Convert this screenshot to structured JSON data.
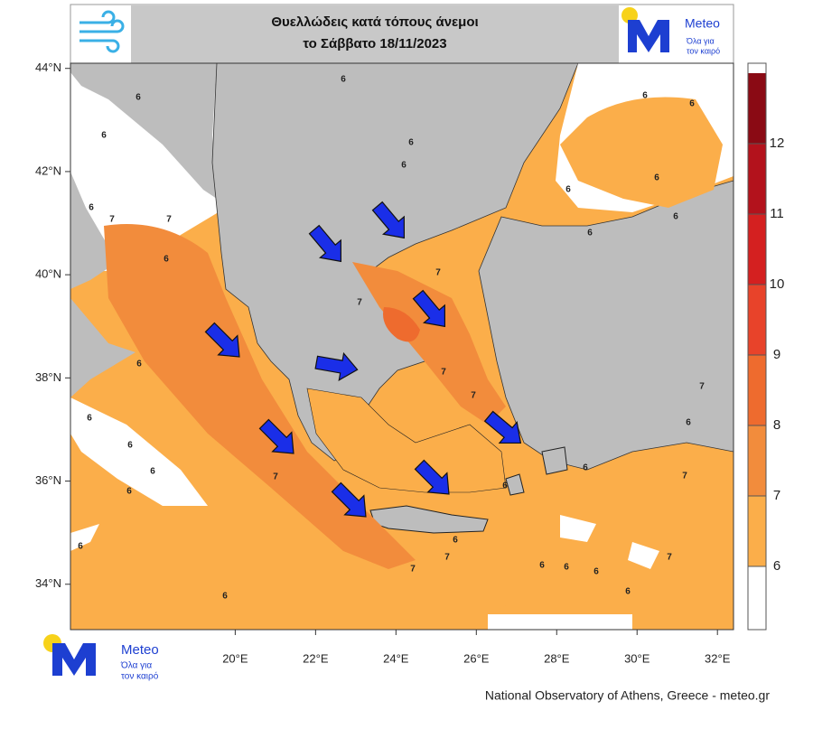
{
  "header": {
    "title_line1": "Θυελλώδεις κατά τόπους άνεμοι",
    "title_line2": "το Σάββατο 18/11/2023"
  },
  "logo": {
    "name": "Meteo",
    "tagline_line1": "Όλα για",
    "tagline_line2": "τον καιρό"
  },
  "map": {
    "xlim": [
      15.9,
      32.4
    ],
    "ylim": [
      33.12,
      44.1
    ],
    "xticks": [
      {
        "value": 20,
        "label": "20°E"
      },
      {
        "value": 22,
        "label": "22°E"
      },
      {
        "value": 24,
        "label": "24°E"
      },
      {
        "value": 26,
        "label": "26°E"
      },
      {
        "value": 28,
        "label": "28°E"
      },
      {
        "value": 30,
        "label": "30°E"
      },
      {
        "value": 32,
        "label": "32°E"
      }
    ],
    "yticks": [
      {
        "value": 44,
        "label": "44°N"
      },
      {
        "value": 42,
        "label": "42°N"
      },
      {
        "value": 40,
        "label": "40°N"
      },
      {
        "value": 38,
        "label": "38°N"
      },
      {
        "value": 36,
        "label": "36°N"
      },
      {
        "value": 34,
        "label": "34°N"
      }
    ],
    "colorbar": {
      "levels": [
        6,
        7,
        8,
        9,
        10,
        11,
        12
      ],
      "below_color": "#ffffff",
      "colors": [
        "#fbae4a",
        "#f28c3c",
        "#ee6b2e",
        "#e8432a",
        "#d42020",
        "#b3121c",
        "#8a0a14"
      ]
    },
    "contour_labels": [
      6,
      6,
      6,
      6,
      6,
      6,
      6,
      6,
      6,
      6,
      6,
      6,
      7,
      7,
      6,
      7,
      7,
      7,
      6,
      7,
      7,
      6,
      6,
      6,
      6,
      7,
      6,
      6,
      7,
      6,
      7,
      7,
      6,
      6,
      6,
      7,
      6,
      6,
      6,
      6
    ]
  },
  "footer": "National Observatory of Athens, Greece - meteo.gr"
}
